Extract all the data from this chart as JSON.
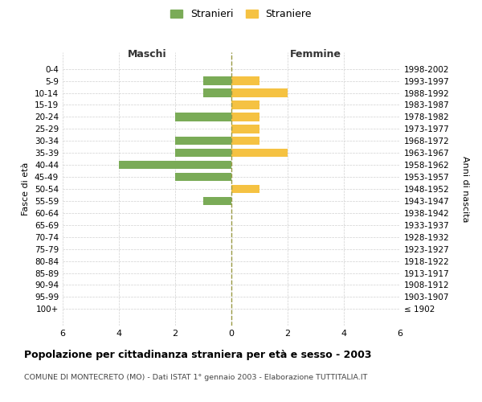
{
  "age_groups": [
    "0-4",
    "5-9",
    "10-14",
    "15-19",
    "20-24",
    "25-29",
    "30-34",
    "35-39",
    "40-44",
    "45-49",
    "50-54",
    "55-59",
    "60-64",
    "65-69",
    "70-74",
    "75-79",
    "80-84",
    "85-89",
    "90-94",
    "95-99",
    "100+"
  ],
  "birth_years": [
    "1998-2002",
    "1993-1997",
    "1988-1992",
    "1983-1987",
    "1978-1982",
    "1973-1977",
    "1968-1972",
    "1963-1967",
    "1958-1962",
    "1953-1957",
    "1948-1952",
    "1943-1947",
    "1938-1942",
    "1933-1937",
    "1928-1932",
    "1923-1927",
    "1918-1922",
    "1913-1917",
    "1908-1912",
    "1903-1907",
    "≤ 1902"
  ],
  "maschi": [
    0,
    1,
    1,
    0,
    2,
    0,
    2,
    2,
    4,
    2,
    0,
    1,
    0,
    0,
    0,
    0,
    0,
    0,
    0,
    0,
    0
  ],
  "femmine": [
    0,
    1,
    2,
    1,
    1,
    1,
    1,
    2,
    0,
    0,
    1,
    0,
    0,
    0,
    0,
    0,
    0,
    0,
    0,
    0,
    0
  ],
  "color_maschi": "#7aab57",
  "color_femmine": "#f5c242",
  "title": "Popolazione per cittadinanza straniera per età e sesso - 2003",
  "subtitle": "COMUNE DI MONTECRETO (MO) - Dati ISTAT 1° gennaio 2003 - Elaborazione TUTTITALIA.IT",
  "xlabel_left": "Maschi",
  "xlabel_right": "Femmine",
  "ylabel_left": "Fasce di età",
  "ylabel_right": "Anni di nascita",
  "legend_stranieri": "Stranieri",
  "legend_straniere": "Straniere",
  "xlim": 6,
  "background_color": "#ffffff",
  "grid_color": "#d0d0d0"
}
